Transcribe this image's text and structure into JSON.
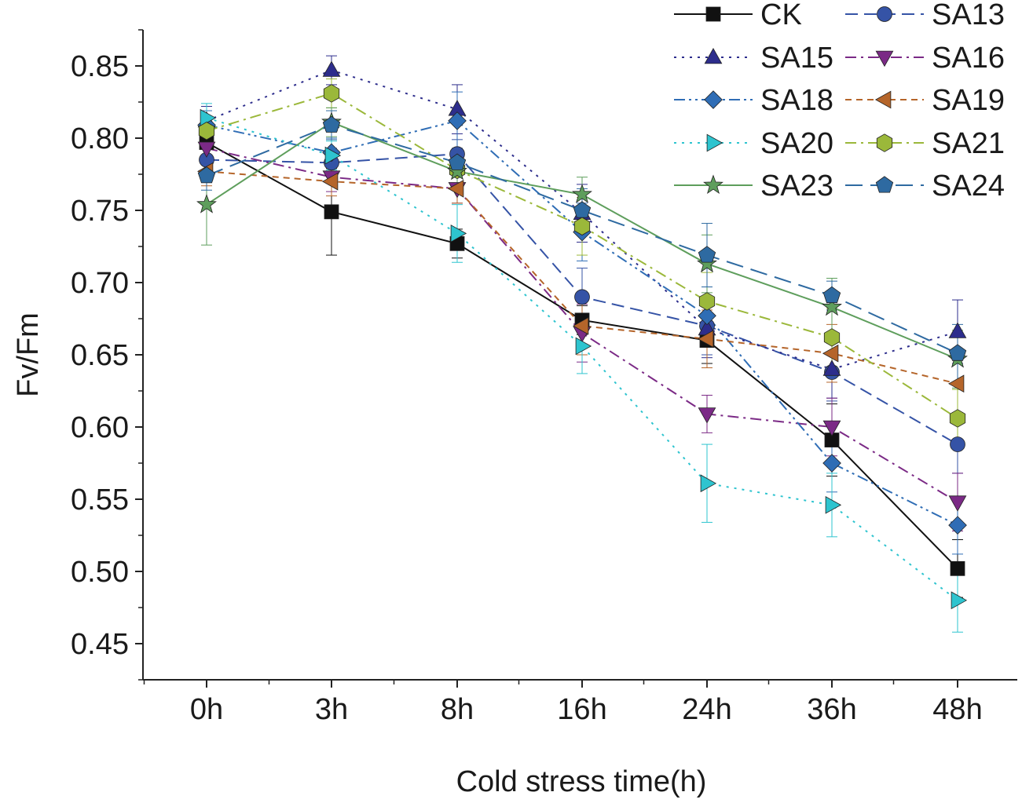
{
  "chart_data": {
    "type": "line",
    "title": "",
    "xlabel": "Cold stress time(h)",
    "ylabel": "Fv/Fm",
    "categories": [
      "0h",
      "3h",
      "8h",
      "16h",
      "24h",
      "36h",
      "48h"
    ],
    "ylim": [
      0.425,
      0.875
    ],
    "yticks": [
      "0.45",
      "0.50",
      "0.55",
      "0.60",
      "0.65",
      "0.70",
      "0.75",
      "0.80",
      "0.85"
    ],
    "legend_position": "top-right",
    "series": [
      {
        "name": "CK",
        "color": "#111111",
        "dash": "solid",
        "marker": "square",
        "values": [
          0.797,
          0.749,
          0.727,
          0.674,
          0.66,
          0.591,
          0.502
        ],
        "errors": [
          0.01,
          0.03,
          0.01,
          0.01,
          0.016,
          0.025,
          0.02
        ]
      },
      {
        "name": "SA13",
        "color": "#3553a6",
        "dash": "dash",
        "marker": "circle",
        "values": [
          0.785,
          0.783,
          0.789,
          0.69,
          0.67,
          0.638,
          0.588
        ],
        "errors": [
          0.01,
          0.01,
          0.01,
          0.02,
          0.02,
          0.02,
          0.02
        ]
      },
      {
        "name": "SA15",
        "color": "#2d2d8c",
        "dash": "dot",
        "marker": "triangle-up",
        "values": [
          0.812,
          0.847,
          0.82,
          0.748,
          0.668,
          0.64,
          0.666
        ],
        "errors": [
          0.01,
          0.01,
          0.017,
          0.02,
          0.02,
          0.02,
          0.022
        ]
      },
      {
        "name": "SA16",
        "color": "#7b2a86",
        "dash": "dashdot",
        "marker": "triangle-down",
        "values": [
          0.793,
          0.773,
          0.765,
          0.665,
          0.609,
          0.6,
          0.548
        ],
        "errors": [
          0.01,
          0.01,
          0.01,
          0.02,
          0.013,
          0.02,
          0.02
        ]
      },
      {
        "name": "SA18",
        "color": "#2f6db5",
        "dash": "dashdotdot",
        "marker": "diamond",
        "values": [
          0.809,
          0.79,
          0.812,
          0.735,
          0.677,
          0.575,
          0.532
        ],
        "errors": [
          0.01,
          0.01,
          0.02,
          0.02,
          0.02,
          0.02,
          0.02
        ]
      },
      {
        "name": "SA19",
        "color": "#b5652a",
        "dash": "shortdash",
        "marker": "triangle-left",
        "values": [
          0.777,
          0.77,
          0.765,
          0.67,
          0.661,
          0.651,
          0.63
        ],
        "errors": [
          0.01,
          0.01,
          0.01,
          0.02,
          0.02,
          0.02,
          0.02
        ]
      },
      {
        "name": "SA20",
        "color": "#2ec4cf",
        "dash": "dot",
        "marker": "triangle-right",
        "values": [
          0.814,
          0.788,
          0.734,
          0.656,
          0.561,
          0.546,
          0.48
        ],
        "errors": [
          0.01,
          0.01,
          0.02,
          0.019,
          0.027,
          0.022,
          0.022
        ]
      },
      {
        "name": "SA21",
        "color": "#9bb83a",
        "dash": "dashdot",
        "marker": "hexagon",
        "values": [
          0.805,
          0.831,
          0.778,
          0.739,
          0.687,
          0.662,
          0.606
        ],
        "errors": [
          0.01,
          0.01,
          0.01,
          0.02,
          0.02,
          0.02,
          0.02
        ]
      },
      {
        "name": "SA23",
        "color": "#5e9e5c",
        "dash": "solid",
        "marker": "star",
        "values": [
          0.754,
          0.811,
          0.777,
          0.761,
          0.713,
          0.683,
          0.647
        ],
        "errors": [
          0.028,
          0.01,
          0.01,
          0.012,
          0.02,
          0.02,
          0.02
        ]
      },
      {
        "name": "SA24",
        "color": "#2e6aa1",
        "dash": "longdash",
        "marker": "pentagon",
        "values": [
          0.774,
          0.809,
          0.783,
          0.75,
          0.719,
          0.691,
          0.651
        ],
        "errors": [
          0.01,
          0.01,
          0.01,
          0.015,
          0.022,
          0.01,
          0.02
        ]
      }
    ]
  }
}
